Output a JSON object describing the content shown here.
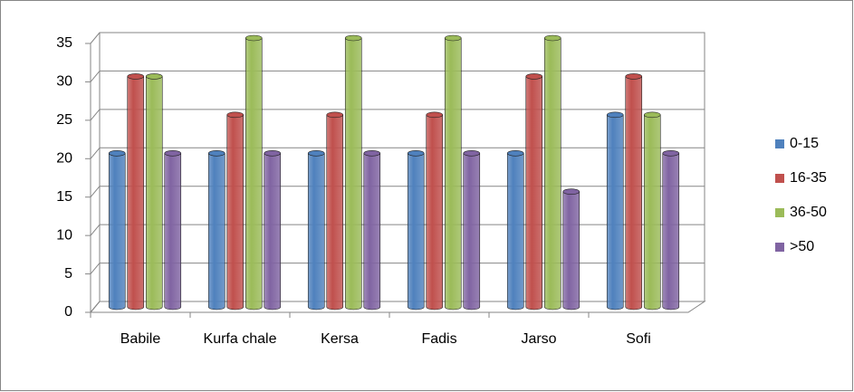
{
  "chart_data": {
    "type": "bar3d",
    "categories": [
      "Babile",
      "Kurfa chale",
      "Kersa",
      "Fadis",
      "Jarso",
      "Sofi"
    ],
    "series": [
      {
        "name": "0-15",
        "color": "#4f81bd",
        "values": [
          20,
          20,
          20,
          20,
          20,
          25
        ]
      },
      {
        "name": "16-35",
        "color": "#c0504d",
        "values": [
          30,
          25,
          25,
          25,
          30,
          30
        ]
      },
      {
        "name": "36-50",
        "color": "#9bbb59",
        "values": [
          30,
          35,
          35,
          35,
          35,
          25
        ]
      },
      {
        "name": ">50",
        "color": "#8064a2",
        "values": [
          20,
          20,
          20,
          20,
          15,
          20
        ]
      }
    ],
    "ylim": [
      0,
      35
    ],
    "yticks": [
      0,
      5,
      10,
      15,
      20,
      25,
      30,
      35
    ],
    "grid": true,
    "legend": "right"
  }
}
